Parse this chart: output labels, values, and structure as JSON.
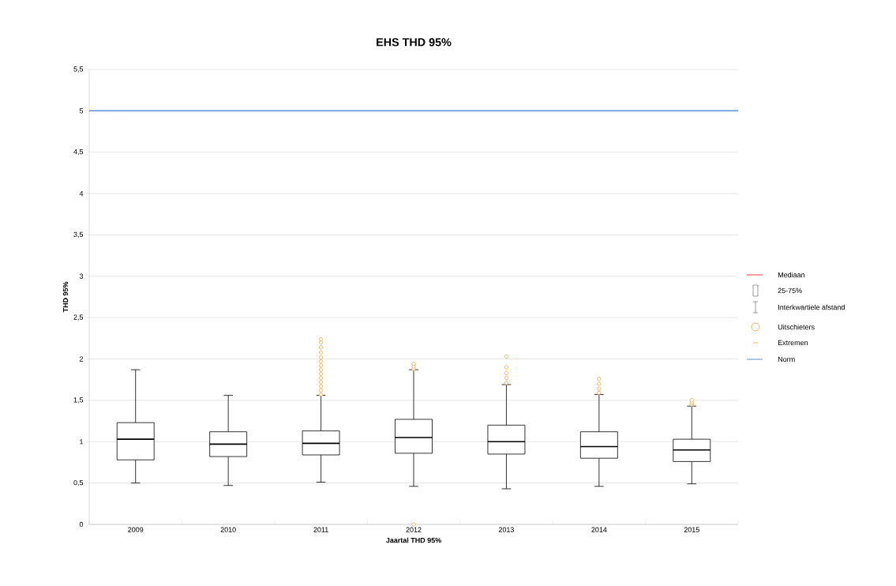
{
  "chart_data": {
    "type": "box",
    "title": "EHS THD 95%",
    "xlabel": "Jaartal THD 95%",
    "ylabel": "THD 95%",
    "categories": [
      "2009",
      "2010",
      "2011",
      "2012",
      "2013",
      "2014",
      "2015"
    ],
    "series": [
      {
        "type": "box",
        "color": "#000000",
        "boxes": [
          {
            "low": 0.5,
            "q1": 0.78,
            "median": 1.03,
            "q3": 1.23,
            "high": 1.87
          },
          {
            "low": 0.47,
            "q1": 0.82,
            "median": 0.97,
            "q3": 1.12,
            "high": 1.56
          },
          {
            "low": 0.51,
            "q1": 0.84,
            "median": 0.98,
            "q3": 1.13,
            "high": 1.56,
            "outliers": [
              1.57,
              1.62,
              1.67,
              1.72,
              1.77,
              1.82,
              1.87,
              1.92,
              1.97,
              2.02,
              2.08,
              2.14,
              2.2,
              2.24
            ]
          },
          {
            "low": 0.46,
            "q1": 0.86,
            "median": 1.05,
            "q3": 1.27,
            "high": 1.87,
            "outliers": [
              1.88,
              1.91,
              1.94,
              0
            ]
          },
          {
            "low": 0.43,
            "q1": 0.85,
            "median": 1.0,
            "q3": 1.2,
            "high": 1.69,
            "outliers": [
              1.71,
              1.77,
              1.83,
              1.9,
              2.03
            ]
          },
          {
            "low": 0.46,
            "q1": 0.8,
            "median": 0.94,
            "q3": 1.12,
            "high": 1.57,
            "outliers": [
              1.59,
              1.64,
              1.7,
              1.76
            ]
          },
          {
            "low": 0.49,
            "q1": 0.76,
            "median": 0.9,
            "q3": 1.03,
            "high": 1.43,
            "outliers": [
              1.45,
              1.47,
              1.5
            ]
          }
        ]
      }
    ],
    "ylim": [
      0,
      5.5
    ],
    "yticks": [
      0,
      {
        "value": 0.5,
        "label": "0,5"
      },
      1,
      {
        "value": 1.5,
        "label": "1,5"
      },
      2,
      {
        "value": 2.5,
        "label": "2,5"
      },
      3,
      {
        "value": 3.5,
        "label": "3,5"
      },
      4,
      {
        "value": 4.5,
        "label": "4,5"
      },
      5,
      {
        "value": 5.5,
        "label": "5,5"
      }
    ],
    "grid": "y",
    "ref_lines": [
      {
        "axis": "y",
        "value": 5,
        "label": "Norm",
        "color": "#5b8fd6"
      }
    ],
    "annotations": [
      "Mediaan",
      "25-75%",
      "Interkwartiele afstand",
      "Uitschieters",
      "Extremen"
    ],
    "legend": "right"
  }
}
